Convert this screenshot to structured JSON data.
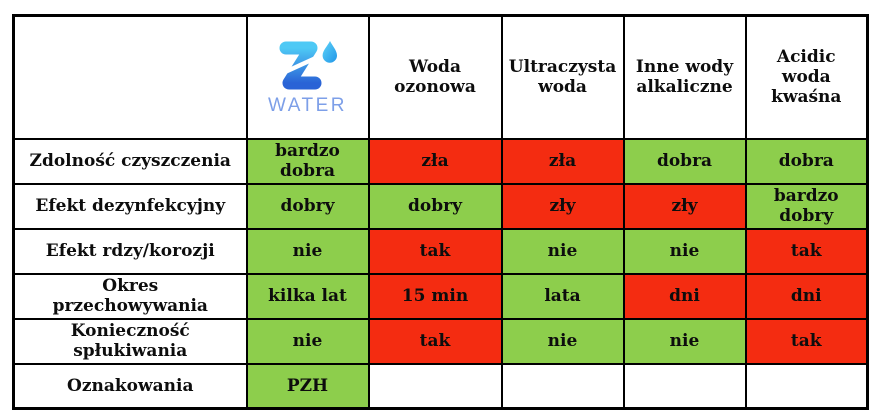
{
  "colors": {
    "good": "#8dce4c",
    "bad": "#f42c11",
    "logo_text": "#7d9fe8",
    "logo_gradient_top": "#4ec9f5",
    "logo_gradient_bottom": "#2a63d6",
    "droplet_blue": "#3fbff2",
    "border": "#000000"
  },
  "logo": {
    "brand": "WATER",
    "icon": "z-droplet-logo"
  },
  "table": {
    "header": {
      "corner_label": "",
      "columns": [
        {
          "id": "zwater",
          "label": ""
        },
        {
          "id": "woda-ozonowa",
          "label": "Woda\nozonowa"
        },
        {
          "id": "ultraczysta-woda",
          "label": "Ultraczysta\nwoda"
        },
        {
          "id": "inne-wody-alkaliczne",
          "label": "Inne wody\nalkaliczne"
        },
        {
          "id": "acidic-woda-kwasna",
          "label": "Acidic\nwoda\nkwaśna"
        }
      ]
    },
    "rows": [
      {
        "label": "Zdolność czyszczenia",
        "cells": [
          {
            "text": "bardzo\ndobra",
            "status": "good"
          },
          {
            "text": "zła",
            "status": "bad"
          },
          {
            "text": "zła",
            "status": "bad"
          },
          {
            "text": "dobra",
            "status": "good"
          },
          {
            "text": "dobra",
            "status": "good"
          }
        ]
      },
      {
        "label": "Efekt dezynfekcyjny",
        "cells": [
          {
            "text": "dobry",
            "status": "good"
          },
          {
            "text": "dobry",
            "status": "good"
          },
          {
            "text": "zły",
            "status": "bad"
          },
          {
            "text": "zły",
            "status": "bad"
          },
          {
            "text": "bardzo\ndobry",
            "status": "good"
          }
        ]
      },
      {
        "label": "Efekt rdzy/korozji",
        "cells": [
          {
            "text": "nie",
            "status": "good"
          },
          {
            "text": "tak",
            "status": "bad"
          },
          {
            "text": "nie",
            "status": "good"
          },
          {
            "text": "nie",
            "status": "good"
          },
          {
            "text": "tak",
            "status": "bad"
          }
        ]
      },
      {
        "label": "Okres\nprzechowywania",
        "cells": [
          {
            "text": "kilka lat",
            "status": "good"
          },
          {
            "text": "15 min",
            "status": "bad"
          },
          {
            "text": "lata",
            "status": "good"
          },
          {
            "text": "dni",
            "status": "bad"
          },
          {
            "text": "dni",
            "status": "bad"
          }
        ]
      },
      {
        "label": "Konieczność\nspłukiwania",
        "cells": [
          {
            "text": "nie",
            "status": "good"
          },
          {
            "text": "tak",
            "status": "bad"
          },
          {
            "text": "nie",
            "status": "good"
          },
          {
            "text": "nie",
            "status": "good"
          },
          {
            "text": "tak",
            "status": "bad"
          }
        ]
      },
      {
        "label": "Oznakowania",
        "cells": [
          {
            "text": "PZH",
            "status": "good"
          },
          {
            "text": "",
            "status": "none"
          },
          {
            "text": "",
            "status": "none"
          },
          {
            "text": "",
            "status": "none"
          },
          {
            "text": "",
            "status": "none"
          }
        ]
      }
    ]
  }
}
